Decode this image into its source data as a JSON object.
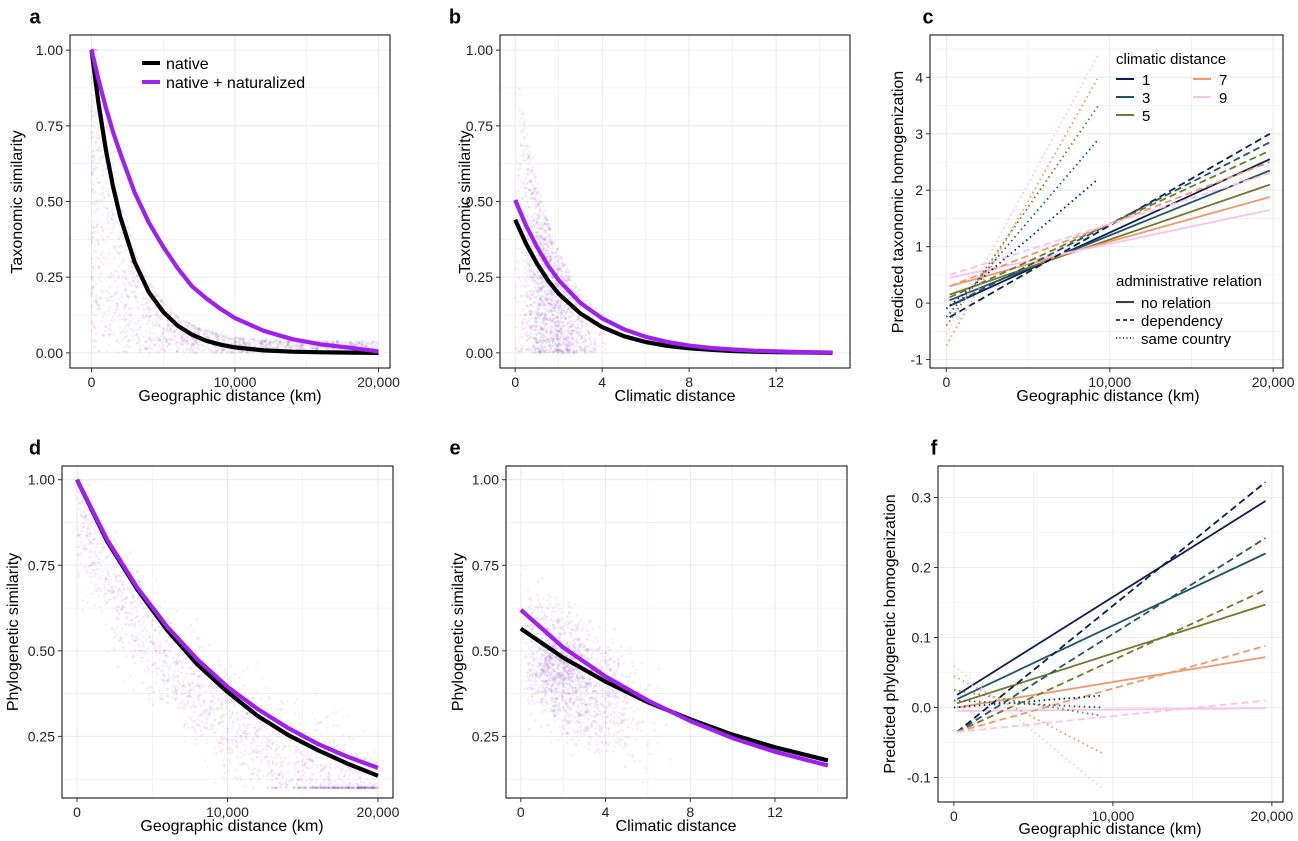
{
  "colors": {
    "native": "#000000",
    "native_naturalized": "#a020f0",
    "cd1": "#0d1e56",
    "cd3": "#1f5567",
    "cd5": "#73792b",
    "cd7": "#ef9a6b",
    "cd9": "#f7c4f0"
  },
  "chart_data": [
    {
      "panel": "a",
      "type": "scatter",
      "xlabel": "Geographic distance (km)",
      "ylabel": "Taxonomic similarity",
      "xlim": [
        -1500,
        20800
      ],
      "ylim": [
        -0.05,
        1.05
      ],
      "xticks": [
        0,
        10000,
        20000
      ],
      "xtick_labels": [
        "0",
        "10,000",
        "20,000"
      ],
      "yticks": [
        0,
        0.25,
        0.5,
        0.75,
        1
      ],
      "ytick_labels": [
        "0.00",
        "0.25",
        "0.50",
        "0.75",
        "1.00"
      ],
      "grid": true,
      "legend": {
        "position": "top-right",
        "entries": [
          "native",
          "native + naturalized"
        ]
      },
      "series": [
        {
          "name": "native",
          "x": [
            0,
            500,
            1000,
            1500,
            2000,
            3000,
            4000,
            5000,
            6000,
            7000,
            8000,
            9000,
            10000,
            12000,
            14000,
            16000,
            18000,
            20000
          ],
          "y": [
            1.0,
            0.82,
            0.67,
            0.55,
            0.45,
            0.3,
            0.2,
            0.135,
            0.09,
            0.06,
            0.04,
            0.027,
            0.018,
            0.008,
            0.004,
            0.002,
            0.001,
            0.0
          ]
        },
        {
          "name": "native + naturalized",
          "x": [
            0,
            500,
            1000,
            1500,
            2000,
            3000,
            4000,
            5000,
            6000,
            7000,
            8000,
            9000,
            10000,
            12000,
            14000,
            16000,
            18000,
            20000
          ],
          "y": [
            1.0,
            0.9,
            0.81,
            0.73,
            0.66,
            0.53,
            0.43,
            0.35,
            0.28,
            0.22,
            0.18,
            0.145,
            0.115,
            0.073,
            0.045,
            0.028,
            0.017,
            0.005
          ]
        }
      ]
    },
    {
      "panel": "b",
      "type": "scatter",
      "xlabel": "Climatic distance",
      "ylabel": "Taxonomic similarity",
      "xlim": [
        -0.7,
        15.4
      ],
      "ylim": [
        -0.05,
        1.05
      ],
      "xticks": [
        0,
        4,
        8,
        12
      ],
      "xtick_labels": [
        "0",
        "4",
        "8",
        "12"
      ],
      "yticks": [
        0,
        0.25,
        0.5,
        0.75,
        1
      ],
      "ytick_labels": [
        "0.00",
        "0.25",
        "0.50",
        "0.75",
        "1.00"
      ],
      "grid": true,
      "series": [
        {
          "name": "native",
          "x": [
            0,
            0.5,
            1,
            1.5,
            2,
            3,
            4,
            5,
            6,
            7,
            8,
            9,
            10,
            11,
            12,
            13,
            14,
            14.6
          ],
          "y": [
            0.44,
            0.36,
            0.295,
            0.24,
            0.195,
            0.13,
            0.085,
            0.055,
            0.036,
            0.023,
            0.015,
            0.01,
            0.006,
            0.004,
            0.0025,
            0.0015,
            0.001,
            0.0
          ]
        },
        {
          "name": "native + naturalized",
          "x": [
            0,
            0.5,
            1,
            1.5,
            2,
            3,
            4,
            5,
            6,
            7,
            8,
            9,
            10,
            11,
            12,
            13,
            14,
            14.6
          ],
          "y": [
            0.505,
            0.42,
            0.35,
            0.29,
            0.24,
            0.165,
            0.114,
            0.078,
            0.053,
            0.036,
            0.024,
            0.016,
            0.011,
            0.007,
            0.005,
            0.003,
            0.002,
            0.001
          ]
        }
      ]
    },
    {
      "panel": "c",
      "type": "line",
      "xlabel": "Geographic distance (km)",
      "ylabel": "Predicted taxonomic homogenization",
      "xlim": [
        -1000,
        20600
      ],
      "ylim": [
        -1.15,
        4.75
      ],
      "xticks": [
        0,
        10000,
        20000
      ],
      "xtick_labels": [
        "0",
        "10,000",
        "20,000"
      ],
      "yticks": [
        -1,
        0,
        1,
        2,
        3,
        4
      ],
      "ytick_labels": [
        "-1",
        "0",
        "1",
        "2",
        "3",
        "4"
      ],
      "grid": true,
      "legends": [
        {
          "title": "climatic distance",
          "position": "top-right",
          "entries": [
            "1",
            "3",
            "5",
            "7",
            "9"
          ]
        },
        {
          "title": "administrative relation",
          "position": "bottom-right",
          "entries": [
            "no relation",
            "dependency",
            "same country"
          ]
        }
      ],
      "series": [
        {
          "climatic": "1",
          "relation": "no relation",
          "x": [
            200,
            19800
          ],
          "y": [
            -0.05,
            2.55
          ]
        },
        {
          "climatic": "3",
          "relation": "no relation",
          "x": [
            200,
            19800
          ],
          "y": [
            0.05,
            2.35
          ]
        },
        {
          "climatic": "5",
          "relation": "no relation",
          "x": [
            200,
            19800
          ],
          "y": [
            0.15,
            2.1
          ]
        },
        {
          "climatic": "7",
          "relation": "no relation",
          "x": [
            200,
            19800
          ],
          "y": [
            0.3,
            1.88
          ]
        },
        {
          "climatic": "9",
          "relation": "no relation",
          "x": [
            200,
            19800
          ],
          "y": [
            0.45,
            1.65
          ]
        },
        {
          "climatic": "1",
          "relation": "dependency",
          "x": [
            200,
            19800
          ],
          "y": [
            -0.25,
            3.0
          ]
        },
        {
          "climatic": "3",
          "relation": "dependency",
          "x": [
            200,
            19800
          ],
          "y": [
            -0.05,
            2.85
          ]
        },
        {
          "climatic": "5",
          "relation": "dependency",
          "x": [
            200,
            19800
          ],
          "y": [
            0.1,
            2.7
          ]
        },
        {
          "climatic": "7",
          "relation": "dependency",
          "x": [
            200,
            19800
          ],
          "y": [
            0.3,
            2.5
          ]
        },
        {
          "climatic": "9",
          "relation": "dependency",
          "x": [
            200,
            19800
          ],
          "y": [
            0.5,
            2.3
          ]
        },
        {
          "climatic": "1",
          "relation": "same country",
          "x": [
            0,
            9300
          ],
          "y": [
            -0.1,
            2.2
          ]
        },
        {
          "climatic": "3",
          "relation": "same country",
          "x": [
            0,
            9300
          ],
          "y": [
            -0.25,
            2.9
          ]
        },
        {
          "climatic": "5",
          "relation": "same country",
          "x": [
            0,
            9300
          ],
          "y": [
            -0.4,
            3.5
          ]
        },
        {
          "climatic": "7",
          "relation": "same country",
          "x": [
            0,
            9300
          ],
          "y": [
            -0.75,
            4.0
          ]
        },
        {
          "climatic": "9",
          "relation": "same country",
          "x": [
            0,
            9300
          ],
          "y": [
            -0.55,
            4.4
          ]
        }
      ]
    },
    {
      "panel": "d",
      "type": "scatter",
      "xlabel": "Geographic distance (km)",
      "ylabel": "Phylogenetic similarity",
      "xlim": [
        -1000,
        21000
      ],
      "ylim": [
        0.07,
        1.04
      ],
      "xticks": [
        0,
        10000,
        20000
      ],
      "xtick_labels": [
        "0",
        "10,000",
        "20,000"
      ],
      "yticks": [
        0.25,
        0.5,
        0.75,
        1
      ],
      "ytick_labels": [
        "0.25",
        "0.50",
        "0.75",
        "1.00"
      ],
      "grid": true,
      "series": [
        {
          "name": "native",
          "x": [
            0,
            2000,
            4000,
            6000,
            8000,
            10000,
            12000,
            14000,
            16000,
            18000,
            20000
          ],
          "y": [
            1.0,
            0.82,
            0.68,
            0.56,
            0.46,
            0.38,
            0.31,
            0.255,
            0.21,
            0.17,
            0.135
          ]
        },
        {
          "name": "native + naturalized",
          "x": [
            0,
            2000,
            4000,
            6000,
            8000,
            10000,
            12000,
            14000,
            16000,
            18000,
            20000
          ],
          "y": [
            1.0,
            0.825,
            0.685,
            0.57,
            0.475,
            0.395,
            0.33,
            0.275,
            0.228,
            0.19,
            0.158
          ]
        }
      ]
    },
    {
      "panel": "e",
      "type": "scatter",
      "xlabel": "Climatic distance",
      "ylabel": "Phylogenetic similarity",
      "xlim": [
        -0.7,
        15.4
      ],
      "ylim": [
        0.07,
        1.04
      ],
      "xticks": [
        0,
        4,
        8,
        12
      ],
      "xtick_labels": [
        "0",
        "4",
        "8",
        "12"
      ],
      "yticks": [
        0.25,
        0.5,
        0.75,
        1
      ],
      "ytick_labels": [
        "0.25",
        "0.50",
        "0.75",
        "1.00"
      ],
      "grid": true,
      "series": [
        {
          "name": "native",
          "x": [
            0,
            2,
            4,
            6,
            8,
            10,
            12,
            14.5
          ],
          "y": [
            0.565,
            0.48,
            0.41,
            0.35,
            0.3,
            0.255,
            0.218,
            0.18
          ]
        },
        {
          "name": "native + naturalized",
          "x": [
            0,
            2,
            4,
            6,
            8,
            10,
            12,
            14.5
          ],
          "y": [
            0.62,
            0.51,
            0.425,
            0.355,
            0.295,
            0.245,
            0.205,
            0.165
          ]
        }
      ]
    },
    {
      "panel": "f",
      "type": "line",
      "xlabel": "Geographic distance (km)",
      "ylabel": "Predicted phylogenetic homogenization",
      "xlim": [
        -1000,
        20700
      ],
      "ylim": [
        -0.135,
        0.345
      ],
      "xticks": [
        0,
        10000,
        20000
      ],
      "xtick_labels": [
        "0",
        "10,000",
        "20,000"
      ],
      "yticks": [
        -0.1,
        0,
        0.1,
        0.2,
        0.3
      ],
      "ytick_labels": [
        "-0.1",
        "0.0",
        "0.1",
        "0.2",
        "0.3"
      ],
      "grid": true,
      "series": [
        {
          "climatic": "1",
          "relation": "no relation",
          "x": [
            200,
            19600
          ],
          "y": [
            0.018,
            0.295
          ]
        },
        {
          "climatic": "3",
          "relation": "no relation",
          "x": [
            200,
            19600
          ],
          "y": [
            0.012,
            0.22
          ]
        },
        {
          "climatic": "5",
          "relation": "no relation",
          "x": [
            200,
            19600
          ],
          "y": [
            0.006,
            0.147
          ]
        },
        {
          "climatic": "7",
          "relation": "no relation",
          "x": [
            200,
            19600
          ],
          "y": [
            0.0,
            0.072
          ]
        },
        {
          "climatic": "9",
          "relation": "no relation",
          "x": [
            200,
            19600
          ],
          "y": [
            -0.005,
            -0.001
          ]
        },
        {
          "climatic": "1",
          "relation": "dependency",
          "x": [
            200,
            19600
          ],
          "y": [
            -0.035,
            0.322
          ]
        },
        {
          "climatic": "3",
          "relation": "dependency",
          "x": [
            200,
            19600
          ],
          "y": [
            -0.035,
            0.242
          ]
        },
        {
          "climatic": "5",
          "relation": "dependency",
          "x": [
            200,
            19600
          ],
          "y": [
            -0.035,
            0.168
          ]
        },
        {
          "climatic": "7",
          "relation": "dependency",
          "x": [
            200,
            19600
          ],
          "y": [
            -0.035,
            0.088
          ]
        },
        {
          "climatic": "9",
          "relation": "dependency",
          "x": [
            200,
            19600
          ],
          "y": [
            -0.035,
            0.01
          ]
        },
        {
          "climatic": "1",
          "relation": "same country",
          "x": [
            0,
            9300
          ],
          "y": [
            0.0,
            0.017
          ]
        },
        {
          "climatic": "3",
          "relation": "same country",
          "x": [
            0,
            9300
          ],
          "y": [
            0.01,
            0.0
          ]
        },
        {
          "climatic": "5",
          "relation": "same country",
          "x": [
            0,
            9300
          ],
          "y": [
            0.025,
            -0.012
          ]
        },
        {
          "climatic": "7",
          "relation": "same country",
          "x": [
            0,
            9300
          ],
          "y": [
            0.045,
            -0.065
          ]
        },
        {
          "climatic": "9",
          "relation": "same country",
          "x": [
            0,
            9300
          ],
          "y": [
            0.06,
            -0.115
          ]
        }
      ]
    }
  ]
}
